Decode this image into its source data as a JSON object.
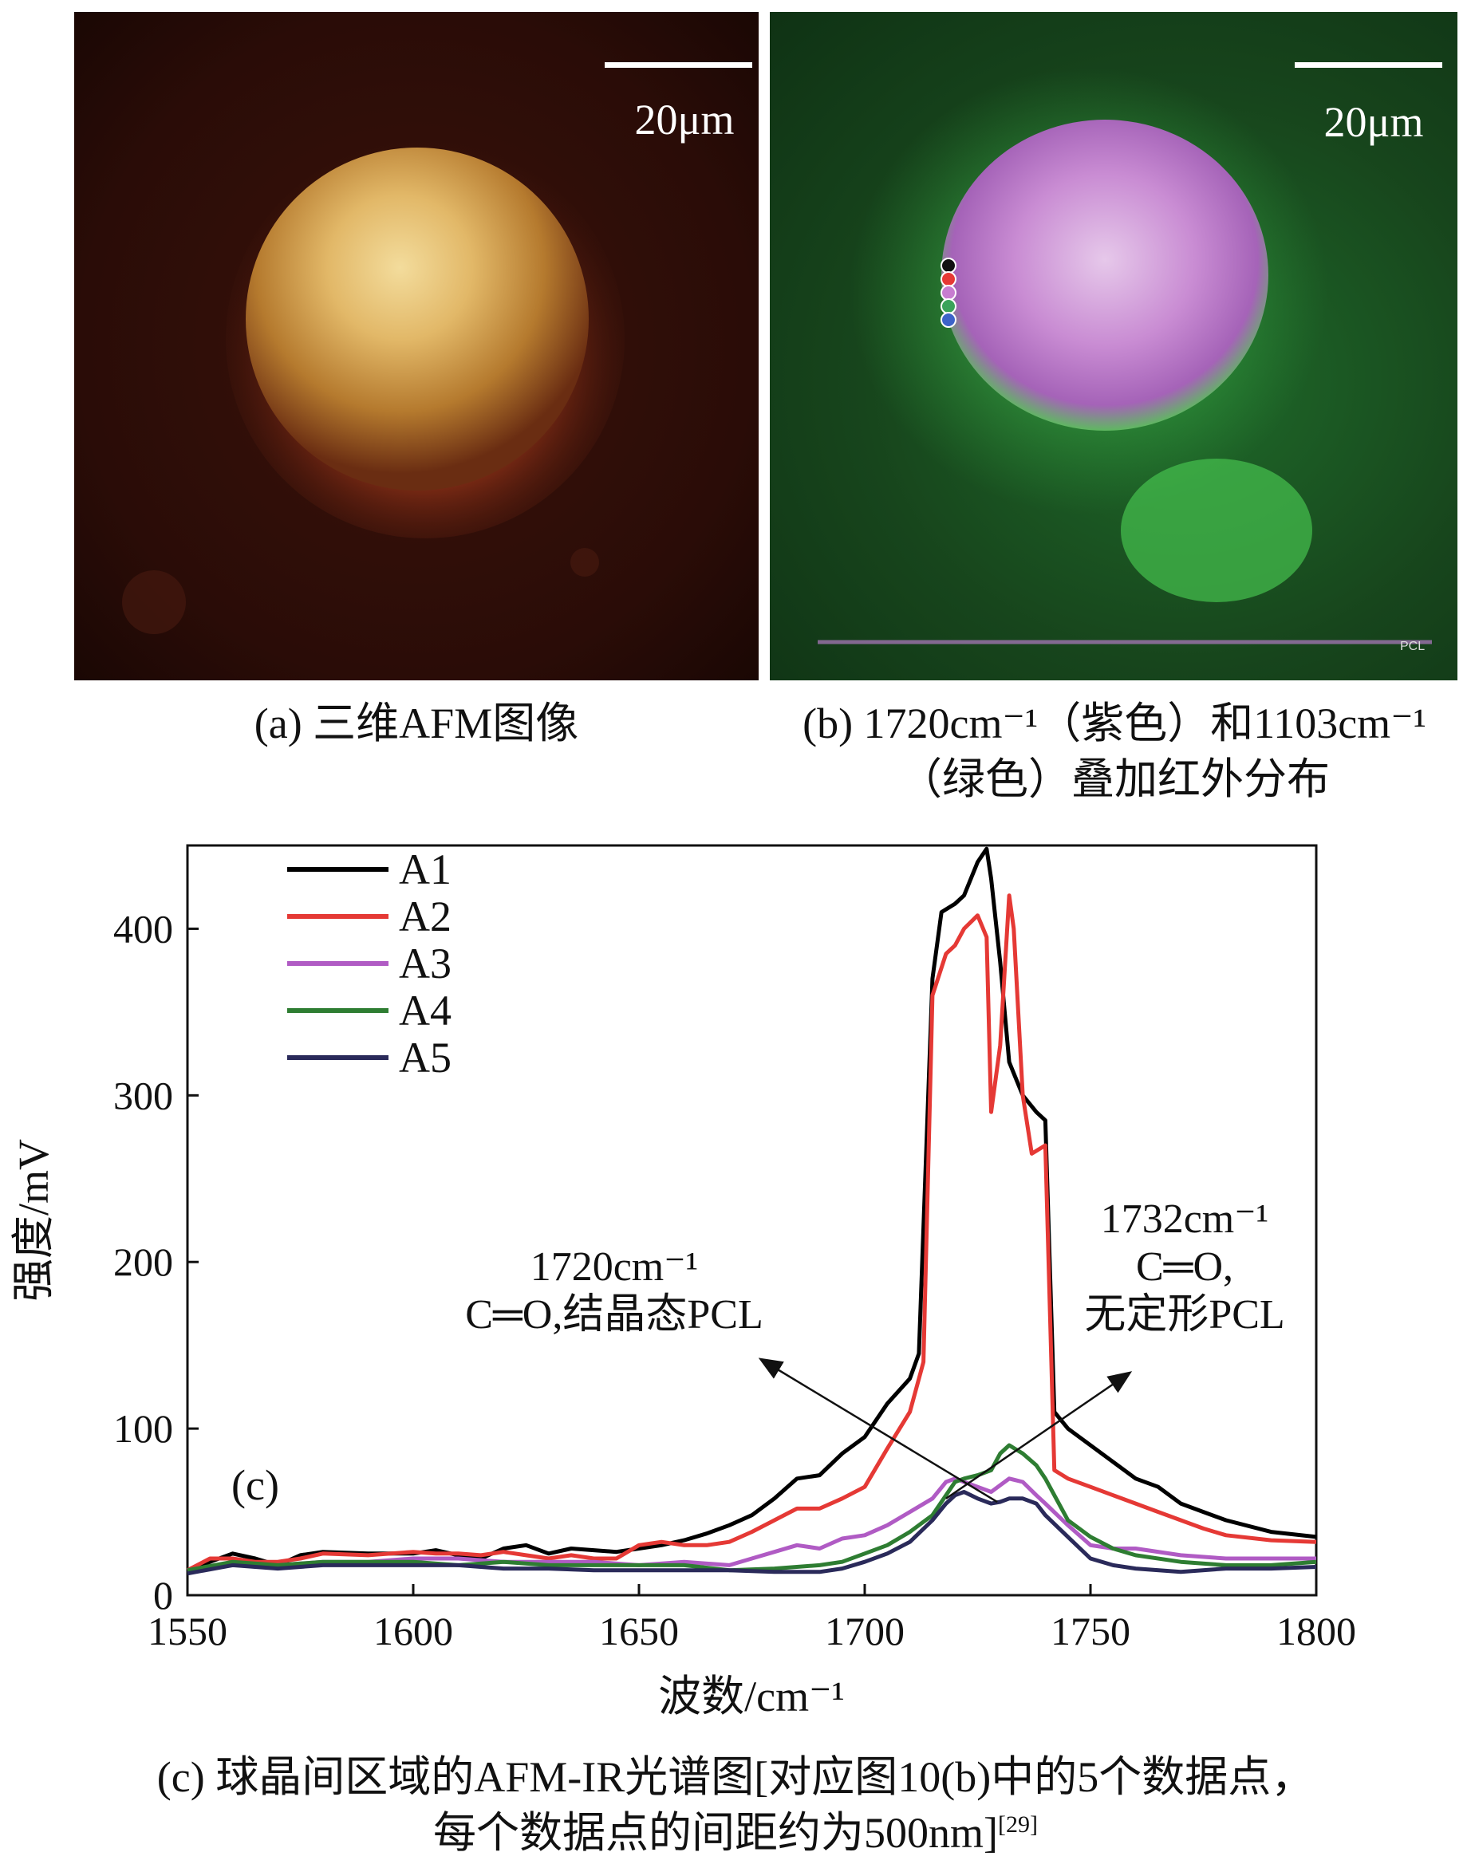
{
  "panel_a": {
    "scale_label": "20μm",
    "caption": "(a) 三维AFM图像"
  },
  "panel_b": {
    "scale_label": "20μm",
    "watermark": "PCL",
    "caption_line1": "(b) 1720cm⁻¹（紫色）和1103cm⁻¹",
    "caption_line2": "（绿色）叠加红外分布",
    "point_colors": [
      "#111111",
      "#e53935",
      "#c77dd0",
      "#3aa35a",
      "#3d63c9"
    ]
  },
  "chart_data": {
    "type": "line",
    "panel_label": "(c)",
    "xlabel": "波数/cm⁻¹",
    "ylabel": "强度/mV",
    "xlim": [
      1550,
      1800
    ],
    "ylim": [
      0,
      450
    ],
    "xticks": [
      1550,
      1600,
      1650,
      1700,
      1750,
      1800
    ],
    "yticks": [
      0,
      100,
      200,
      300,
      400
    ],
    "annotations": [
      {
        "lines": [
          "1720cm⁻¹",
          "C═O,结晶态PCL"
        ],
        "x": 1720
      },
      {
        "lines": [
          "1732cm⁻¹",
          "C═O,",
          "无定形PCL"
        ],
        "x": 1732
      }
    ],
    "series": [
      {
        "name": "A1",
        "color": "#000000",
        "x": [
          1550,
          1555,
          1560,
          1565,
          1570,
          1575,
          1580,
          1590,
          1600,
          1605,
          1610,
          1615,
          1620,
          1625,
          1630,
          1635,
          1640,
          1645,
          1650,
          1655,
          1660,
          1665,
          1670,
          1675,
          1680,
          1685,
          1690,
          1695,
          1700,
          1705,
          1710,
          1712,
          1715,
          1717,
          1720,
          1722,
          1725,
          1727,
          1728,
          1730,
          1732,
          1735,
          1738,
          1740,
          1742,
          1745,
          1750,
          1755,
          1760,
          1765,
          1770,
          1775,
          1780,
          1790,
          1800
        ],
        "y": [
          15,
          20,
          25,
          22,
          18,
          24,
          26,
          25,
          25,
          27,
          24,
          22,
          28,
          30,
          25,
          28,
          27,
          26,
          28,
          30,
          33,
          37,
          42,
          48,
          58,
          70,
          72,
          85,
          95,
          115,
          130,
          145,
          370,
          410,
          415,
          420,
          440,
          448,
          430,
          380,
          320,
          300,
          290,
          285,
          110,
          100,
          90,
          80,
          70,
          65,
          55,
          50,
          45,
          38,
          35
        ]
      },
      {
        "name": "A2",
        "color": "#e53935",
        "x": [
          1550,
          1555,
          1560,
          1565,
          1570,
          1575,
          1580,
          1590,
          1600,
          1605,
          1610,
          1615,
          1620,
          1625,
          1630,
          1635,
          1640,
          1645,
          1650,
          1655,
          1660,
          1665,
          1670,
          1675,
          1680,
          1685,
          1690,
          1695,
          1700,
          1705,
          1710,
          1713,
          1715,
          1718,
          1720,
          1722,
          1725,
          1727,
          1728,
          1730,
          1732,
          1733,
          1735,
          1737,
          1740,
          1742,
          1745,
          1750,
          1755,
          1760,
          1765,
          1770,
          1775,
          1780,
          1790,
          1800
        ],
        "y": [
          15,
          22,
          22,
          20,
          20,
          22,
          25,
          24,
          26,
          25,
          25,
          24,
          26,
          24,
          22,
          24,
          22,
          22,
          30,
          32,
          30,
          30,
          32,
          38,
          45,
          52,
          52,
          58,
          65,
          88,
          110,
          140,
          360,
          385,
          390,
          400,
          408,
          395,
          290,
          330,
          420,
          400,
          300,
          265,
          270,
          75,
          70,
          65,
          60,
          55,
          50,
          45,
          40,
          36,
          33,
          32
        ]
      },
      {
        "name": "A3",
        "color": "#b05bc4",
        "x": [
          1550,
          1560,
          1570,
          1580,
          1590,
          1600,
          1610,
          1620,
          1630,
          1640,
          1650,
          1660,
          1670,
          1675,
          1680,
          1685,
          1690,
          1695,
          1700,
          1705,
          1710,
          1715,
          1718,
          1720,
          1722,
          1725,
          1728,
          1730,
          1732,
          1735,
          1738,
          1740,
          1745,
          1750,
          1755,
          1760,
          1770,
          1780,
          1790,
          1800
        ],
        "y": [
          15,
          18,
          18,
          20,
          20,
          22,
          22,
          20,
          20,
          20,
          18,
          20,
          18,
          22,
          26,
          30,
          28,
          34,
          36,
          42,
          50,
          58,
          68,
          70,
          68,
          65,
          62,
          66,
          70,
          68,
          60,
          55,
          42,
          30,
          28,
          28,
          24,
          22,
          22,
          22
        ]
      },
      {
        "name": "A4",
        "color": "#2e7d32",
        "x": [
          1550,
          1560,
          1570,
          1580,
          1590,
          1600,
          1610,
          1620,
          1630,
          1640,
          1650,
          1660,
          1670,
          1680,
          1690,
          1695,
          1700,
          1705,
          1710,
          1715,
          1718,
          1720,
          1722,
          1725,
          1728,
          1730,
          1732,
          1735,
          1738,
          1740,
          1745,
          1750,
          1755,
          1760,
          1770,
          1780,
          1790,
          1800
        ],
        "y": [
          15,
          20,
          18,
          20,
          20,
          20,
          18,
          20,
          18,
          18,
          18,
          18,
          15,
          16,
          18,
          20,
          25,
          30,
          38,
          48,
          60,
          68,
          70,
          72,
          75,
          85,
          90,
          85,
          78,
          70,
          45,
          35,
          28,
          24,
          20,
          18,
          18,
          20
        ]
      },
      {
        "name": "A5",
        "color": "#2a2a5a",
        "x": [
          1550,
          1560,
          1570,
          1580,
          1590,
          1600,
          1610,
          1620,
          1630,
          1640,
          1650,
          1660,
          1670,
          1680,
          1690,
          1695,
          1700,
          1705,
          1710,
          1715,
          1718,
          1720,
          1722,
          1725,
          1728,
          1730,
          1732,
          1735,
          1738,
          1740,
          1745,
          1750,
          1755,
          1760,
          1770,
          1780,
          1790,
          1800
        ],
        "y": [
          13,
          18,
          16,
          18,
          18,
          18,
          18,
          16,
          16,
          15,
          15,
          15,
          15,
          14,
          14,
          16,
          20,
          25,
          32,
          45,
          55,
          60,
          62,
          58,
          55,
          56,
          58,
          58,
          55,
          48,
          35,
          22,
          18,
          16,
          14,
          16,
          16,
          17
        ]
      }
    ]
  },
  "caption_c": {
    "line1": "(c) 球晶间区域的AFM-IR光谱图[对应图10(b)中的5个数据点，",
    "line2": "每个数据点的间距约为500nm]",
    "ref": "[29]"
  }
}
